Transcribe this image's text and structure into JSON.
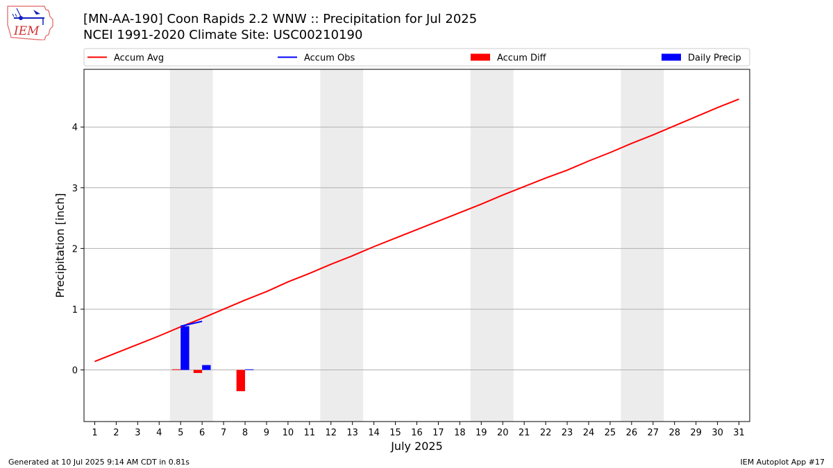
{
  "header": {
    "title_line_1": "[MN-AA-190] Coon Rapids 2.2 WNW :: Precipitation for Jul 2025",
    "title_line_2": "NCEI 1991-2020 Climate Site: USC00210190",
    "logo_text": "IEM"
  },
  "footer": {
    "left": "Generated at 10 Jul 2025 9:14 AM CDT in 0.81s",
    "right": "IEM Autoplot App #17"
  },
  "colors": {
    "avg": "#ff0000",
    "obs": "#0000ff",
    "diff": "#ff0000",
    "daily": "#0000ff",
    "weekend_band": "#ececec",
    "grid": "#b0b0b0"
  },
  "chart_data": {
    "type": "line",
    "xlabel": "July 2025",
    "ylabel": "Precipitation [inch]",
    "xlim": [
      0.5,
      31.5
    ],
    "ylim": [
      -0.85,
      4.95
    ],
    "x_ticks": [
      1,
      2,
      3,
      4,
      5,
      6,
      7,
      8,
      9,
      10,
      11,
      12,
      13,
      14,
      15,
      16,
      17,
      18,
      19,
      20,
      21,
      22,
      23,
      24,
      25,
      26,
      27,
      28,
      29,
      30,
      31
    ],
    "y_ticks": [
      0,
      1,
      2,
      3,
      4
    ],
    "grid": "y",
    "legend_position": "top",
    "legend": [
      {
        "label": "Accum Avg",
        "kind": "line",
        "color": "#ff0000"
      },
      {
        "label": "Accum Obs",
        "kind": "line",
        "color": "#0000ff"
      },
      {
        "label": "Accum Diff",
        "kind": "bar",
        "color": "#ff0000"
      },
      {
        "label": "Daily Precip",
        "kind": "bar",
        "color": "#0000ff"
      }
    ],
    "weekend_bands": [
      [
        4.5,
        6.5
      ],
      [
        11.5,
        13.5
      ],
      [
        18.5,
        20.5
      ],
      [
        25.5,
        27.5
      ]
    ],
    "series": [
      {
        "name": "Accum Avg",
        "type": "line",
        "color": "#ff0000",
        "x": [
          1,
          2,
          3,
          4,
          5,
          6,
          7,
          8,
          9,
          10,
          11,
          12,
          13,
          14,
          15,
          16,
          17,
          18,
          19,
          20,
          21,
          22,
          23,
          24,
          25,
          26,
          27,
          28,
          29,
          30,
          31
        ],
        "values": [
          0.14,
          0.28,
          0.42,
          0.56,
          0.71,
          0.85,
          1.0,
          1.15,
          1.29,
          1.45,
          1.59,
          1.74,
          1.88,
          2.03,
          2.17,
          2.31,
          2.45,
          2.59,
          2.73,
          2.88,
          3.02,
          3.16,
          3.29,
          3.44,
          3.58,
          3.73,
          3.87,
          4.02,
          4.17,
          4.32,
          4.46
        ]
      },
      {
        "name": "Accum Obs",
        "type": "line",
        "color": "#0000ff",
        "x": [
          5,
          6
        ],
        "values": [
          0.72,
          0.8
        ]
      },
      {
        "name": "Accum Diff",
        "type": "bar",
        "color": "#ff0000",
        "x": [
          5,
          6,
          8
        ],
        "values": [
          0.01,
          -0.05,
          -0.35
        ]
      },
      {
        "name": "Daily Precip",
        "type": "bar",
        "color": "#0000ff",
        "x": [
          5,
          6,
          8
        ],
        "values": [
          0.72,
          0.08,
          0.01
        ]
      }
    ]
  }
}
